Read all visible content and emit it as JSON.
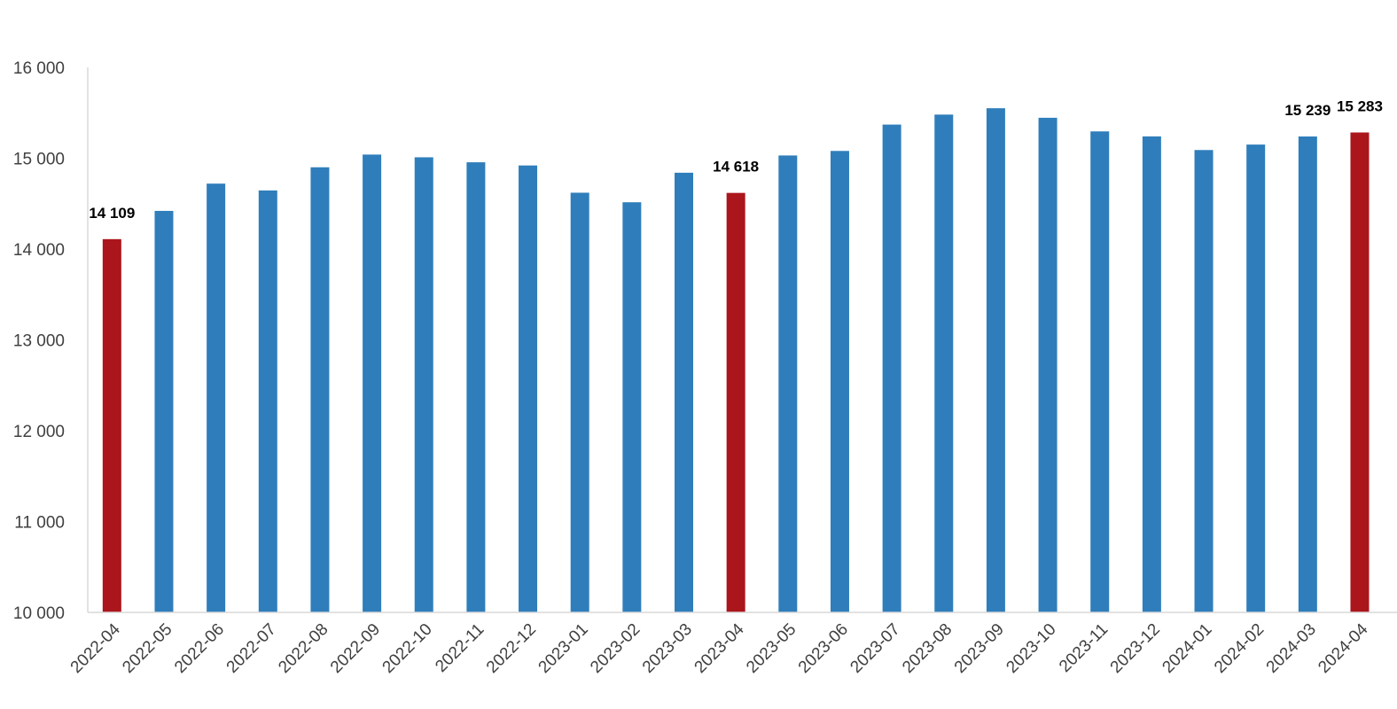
{
  "chart_data": {
    "type": "bar",
    "title": "",
    "xlabel": "",
    "ylabel": "",
    "ylim": [
      10000,
      16000
    ],
    "yticks": [
      10000,
      11000,
      12000,
      13000,
      14000,
      15000,
      16000
    ],
    "ytick_labels": [
      "10 000",
      "11 000",
      "12 000",
      "13 000",
      "14 000",
      "15 000",
      "16 000"
    ],
    "grid": false,
    "legend": "none",
    "categories": [
      "2022-04",
      "2022-05",
      "2022-06",
      "2022-07",
      "2022-08",
      "2022-09",
      "2022-10",
      "2022-11",
      "2022-12",
      "2023-01",
      "2023-02",
      "2023-03",
      "2023-04",
      "2023-05",
      "2023-06",
      "2023-07",
      "2023-08",
      "2023-09",
      "2023-10",
      "2023-11",
      "2023-12",
      "2024-01",
      "2024-02",
      "2024-03",
      "2024-04"
    ],
    "values": [
      14109,
      14420,
      14720,
      14645,
      14900,
      15040,
      15010,
      14955,
      14920,
      14620,
      14515,
      14840,
      14618,
      15030,
      15080,
      15370,
      15480,
      15550,
      15445,
      15295,
      15240,
      15090,
      15150,
      15239,
      15283
    ],
    "highlighted": [
      0,
      12,
      24
    ],
    "data_labels": [
      {
        "index": 0,
        "text": "14 109"
      },
      {
        "index": 12,
        "text": "14 618"
      },
      {
        "index": 23,
        "text": "15 239"
      },
      {
        "index": 24,
        "text": "15 283"
      }
    ],
    "colors": {
      "default": "#2f7ebb",
      "highlight": "#ab151c",
      "axis": "#d9d9d9"
    }
  }
}
